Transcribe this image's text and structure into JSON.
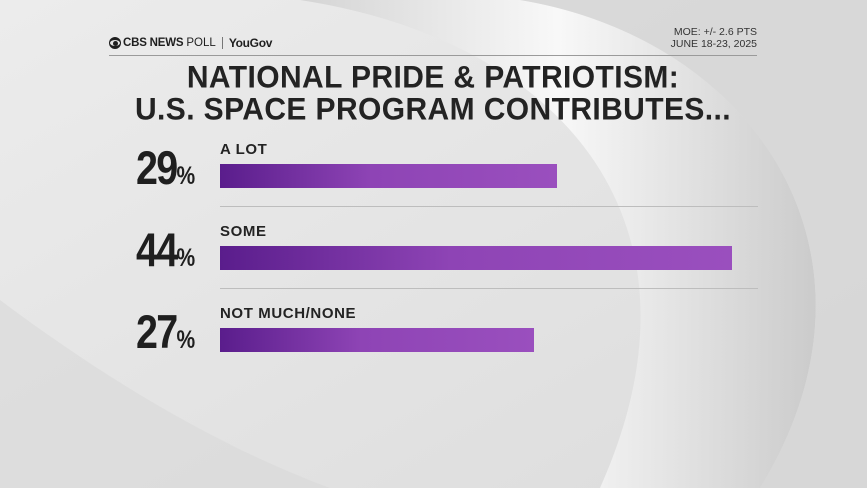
{
  "header": {
    "brand": "CBS NEWS",
    "poll": "POLL",
    "partner": "YouGov",
    "moe": "MOE: +/- 2.6 PTS",
    "dates": "JUNE 18-23, 2025"
  },
  "title": {
    "line1": "NATIONAL PRIDE & PATRIOTISM:",
    "line2": "U.S. SPACE PROGRAM CONTRIBUTES..."
  },
  "colors": {
    "bar": "#8e44b5",
    "bar_dark": "#5a1d8c",
    "text": "#1f1f1f",
    "background": "#e6e6e6"
  },
  "chart_data": {
    "type": "bar",
    "orientation": "horizontal",
    "title": "NATIONAL PRIDE & PATRIOTISM: U.S. SPACE PROGRAM CONTRIBUTES...",
    "categories": [
      "A LOT",
      "SOME",
      "NOT MUCH/NONE"
    ],
    "values": [
      29,
      44,
      27
    ],
    "value_labels": [
      "29",
      "44",
      "27"
    ],
    "unit": "%",
    "xlim": [
      0,
      44
    ]
  }
}
